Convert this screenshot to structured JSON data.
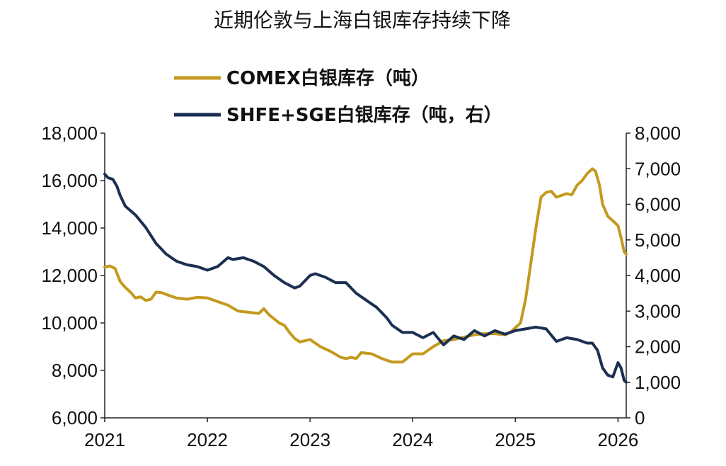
{
  "chart_data": {
    "type": "line",
    "title": "近期伦敦与上海白银库存持续下降",
    "x_ticks": [
      "2021",
      "2022",
      "2023",
      "2024",
      "2025",
      "2026"
    ],
    "left_axis": {
      "min": 6000,
      "max": 18000,
      "ticks": [
        "6,000",
        "8,000",
        "10,000",
        "12,000",
        "14,000",
        "16,000",
        "18,000"
      ]
    },
    "right_axis": {
      "min": 0,
      "max": 8000,
      "ticks": [
        "0",
        "1,000",
        "2,000",
        "3,000",
        "4,000",
        "5,000",
        "6,000",
        "7,000",
        "8,000"
      ]
    },
    "x_range": [
      2021.0,
      2026.08
    ],
    "legend_position": "top-center",
    "grid": false,
    "series": [
      {
        "name": "COMEX白银库存（吨）",
        "axis": "left",
        "color": "#C49A1E",
        "points": [
          [
            2021.0,
            12350
          ],
          [
            2021.05,
            12400
          ],
          [
            2021.1,
            12300
          ],
          [
            2021.15,
            11750
          ],
          [
            2021.2,
            11500
          ],
          [
            2021.25,
            11300
          ],
          [
            2021.3,
            11050
          ],
          [
            2021.35,
            11100
          ],
          [
            2021.4,
            10950
          ],
          [
            2021.45,
            11000
          ],
          [
            2021.5,
            11300
          ],
          [
            2021.55,
            11280
          ],
          [
            2021.6,
            11200
          ],
          [
            2021.7,
            11050
          ],
          [
            2021.8,
            11000
          ],
          [
            2021.9,
            11080
          ],
          [
            2022.0,
            11050
          ],
          [
            2022.1,
            10900
          ],
          [
            2022.2,
            10750
          ],
          [
            2022.3,
            10500
          ],
          [
            2022.4,
            10450
          ],
          [
            2022.5,
            10400
          ],
          [
            2022.55,
            10600
          ],
          [
            2022.6,
            10350
          ],
          [
            2022.7,
            10000
          ],
          [
            2022.75,
            9900
          ],
          [
            2022.8,
            9600
          ],
          [
            2022.85,
            9350
          ],
          [
            2022.9,
            9200
          ],
          [
            2023.0,
            9300
          ],
          [
            2023.1,
            9000
          ],
          [
            2023.2,
            8800
          ],
          [
            2023.3,
            8550
          ],
          [
            2023.35,
            8500
          ],
          [
            2023.4,
            8550
          ],
          [
            2023.45,
            8500
          ],
          [
            2023.5,
            8750
          ],
          [
            2023.6,
            8700
          ],
          [
            2023.7,
            8500
          ],
          [
            2023.8,
            8350
          ],
          [
            2023.9,
            8350
          ],
          [
            2024.0,
            8700
          ],
          [
            2024.1,
            8700
          ],
          [
            2024.2,
            9000
          ],
          [
            2024.3,
            9250
          ],
          [
            2024.4,
            9300
          ],
          [
            2024.5,
            9400
          ],
          [
            2024.6,
            9500
          ],
          [
            2024.7,
            9550
          ],
          [
            2024.8,
            9550
          ],
          [
            2024.9,
            9500
          ],
          [
            2024.95,
            9600
          ],
          [
            2025.05,
            10000
          ],
          [
            2025.1,
            11000
          ],
          [
            2025.15,
            12500
          ],
          [
            2025.2,
            14000
          ],
          [
            2025.25,
            15300
          ],
          [
            2025.3,
            15500
          ],
          [
            2025.35,
            15550
          ],
          [
            2025.4,
            15300
          ],
          [
            2025.5,
            15450
          ],
          [
            2025.55,
            15400
          ],
          [
            2025.6,
            15800
          ],
          [
            2025.65,
            16000
          ],
          [
            2025.7,
            16300
          ],
          [
            2025.75,
            16500
          ],
          [
            2025.78,
            16400
          ],
          [
            2025.82,
            15800
          ],
          [
            2025.85,
            15000
          ],
          [
            2025.9,
            14500
          ],
          [
            2025.95,
            14300
          ],
          [
            2026.0,
            14100
          ],
          [
            2026.03,
            13600
          ],
          [
            2026.06,
            13000
          ],
          [
            2026.08,
            12900
          ]
        ]
      },
      {
        "name": "SHFE+SGE白银库存（吨，右）",
        "axis": "right",
        "color": "#1B2F52",
        "points": [
          [
            2021.0,
            6850
          ],
          [
            2021.03,
            6750
          ],
          [
            2021.08,
            6700
          ],
          [
            2021.12,
            6500
          ],
          [
            2021.15,
            6250
          ],
          [
            2021.2,
            5950
          ],
          [
            2021.3,
            5700
          ],
          [
            2021.4,
            5350
          ],
          [
            2021.5,
            4900
          ],
          [
            2021.6,
            4600
          ],
          [
            2021.7,
            4400
          ],
          [
            2021.8,
            4300
          ],
          [
            2021.9,
            4250
          ],
          [
            2022.0,
            4150
          ],
          [
            2022.1,
            4250
          ],
          [
            2022.2,
            4500
          ],
          [
            2022.25,
            4450
          ],
          [
            2022.35,
            4500
          ],
          [
            2022.45,
            4400
          ],
          [
            2022.55,
            4250
          ],
          [
            2022.65,
            4000
          ],
          [
            2022.75,
            3800
          ],
          [
            2022.85,
            3650
          ],
          [
            2022.9,
            3700
          ],
          [
            2023.0,
            4000
          ],
          [
            2023.05,
            4050
          ],
          [
            2023.15,
            3950
          ],
          [
            2023.25,
            3800
          ],
          [
            2023.35,
            3800
          ],
          [
            2023.45,
            3500
          ],
          [
            2023.55,
            3300
          ],
          [
            2023.65,
            3100
          ],
          [
            2023.75,
            2800
          ],
          [
            2023.8,
            2600
          ],
          [
            2023.9,
            2400
          ],
          [
            2024.0,
            2400
          ],
          [
            2024.1,
            2250
          ],
          [
            2024.2,
            2400
          ],
          [
            2024.3,
            2050
          ],
          [
            2024.4,
            2300
          ],
          [
            2024.5,
            2200
          ],
          [
            2024.6,
            2450
          ],
          [
            2024.7,
            2300
          ],
          [
            2024.8,
            2450
          ],
          [
            2024.9,
            2350
          ],
          [
            2025.0,
            2450
          ],
          [
            2025.1,
            2500
          ],
          [
            2025.2,
            2550
          ],
          [
            2025.3,
            2500
          ],
          [
            2025.4,
            2150
          ],
          [
            2025.5,
            2250
          ],
          [
            2025.6,
            2200
          ],
          [
            2025.7,
            2100
          ],
          [
            2025.75,
            2100
          ],
          [
            2025.8,
            1900
          ],
          [
            2025.85,
            1400
          ],
          [
            2025.9,
            1200
          ],
          [
            2025.95,
            1150
          ],
          [
            2026.0,
            1550
          ],
          [
            2026.03,
            1400
          ],
          [
            2026.06,
            1050
          ],
          [
            2026.08,
            1000
          ]
        ]
      }
    ]
  }
}
